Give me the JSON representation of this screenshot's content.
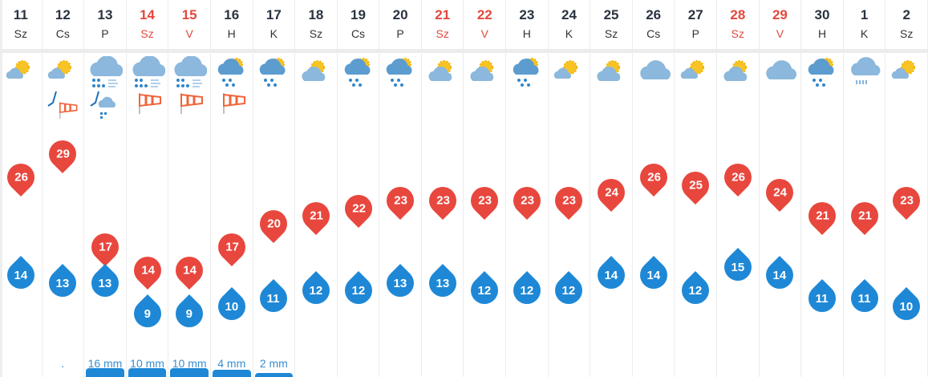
{
  "colors": {
    "max": "#e8473e",
    "min": "#1e88d6",
    "weekend": "#e2483d"
  },
  "days": [
    {
      "day": "11",
      "name": "Sz",
      "weekend": false,
      "icon": "sun-small-cloud",
      "max": 26,
      "min": 14,
      "precip": ""
    },
    {
      "day": "12",
      "name": "Cs",
      "weekend": false,
      "icon": "sun-small-cloud",
      "extra": "storm-windsock",
      "max": 29,
      "min": 13,
      "precip": "."
    },
    {
      "day": "13",
      "name": "P",
      "weekend": false,
      "icon": "cloud-rain-wind",
      "extra": "lightning-hail",
      "max": 17,
      "min": 13,
      "precip": "16 mm",
      "precip_mm": 16
    },
    {
      "day": "14",
      "name": "Sz",
      "weekend": true,
      "icon": "cloud-rain-wind",
      "extra": "windsock",
      "max": 14,
      "min": 9,
      "precip": "10 mm",
      "precip_mm": 10
    },
    {
      "day": "15",
      "name": "V",
      "weekend": true,
      "icon": "cloud-rain-wind",
      "extra": "windsock",
      "max": 14,
      "min": 9,
      "precip": "10 mm",
      "precip_mm": 10
    },
    {
      "day": "16",
      "name": "H",
      "weekend": false,
      "icon": "sun-cloud-rain",
      "extra": "windsock",
      "max": 17,
      "min": 10,
      "precip": "4 mm",
      "precip_mm": 4
    },
    {
      "day": "17",
      "name": "K",
      "weekend": false,
      "icon": "sun-cloud-rain",
      "max": 20,
      "min": 11,
      "precip": "2 mm",
      "precip_mm": 2
    },
    {
      "day": "18",
      "name": "Sz",
      "weekend": false,
      "icon": "partly-cloudy",
      "max": 21,
      "min": 12,
      "precip": ""
    },
    {
      "day": "19",
      "name": "Cs",
      "weekend": false,
      "icon": "sun-cloud-rain",
      "max": 22,
      "min": 12,
      "precip": ""
    },
    {
      "day": "20",
      "name": "P",
      "weekend": false,
      "icon": "sun-cloud-rain",
      "max": 23,
      "min": 13,
      "precip": ""
    },
    {
      "day": "21",
      "name": "Sz",
      "weekend": true,
      "icon": "partly-cloudy",
      "max": 23,
      "min": 13,
      "precip": ""
    },
    {
      "day": "22",
      "name": "V",
      "weekend": true,
      "icon": "partly-cloudy",
      "max": 23,
      "min": 12,
      "precip": ""
    },
    {
      "day": "23",
      "name": "H",
      "weekend": false,
      "icon": "sun-cloud-rain",
      "max": 23,
      "min": 12,
      "precip": ""
    },
    {
      "day": "24",
      "name": "K",
      "weekend": false,
      "icon": "sun-small-cloud",
      "max": 23,
      "min": 12,
      "precip": ""
    },
    {
      "day": "25",
      "name": "Sz",
      "weekend": false,
      "icon": "partly-cloudy",
      "max": 24,
      "min": 14,
      "precip": ""
    },
    {
      "day": "26",
      "name": "Cs",
      "weekend": false,
      "icon": "cloud",
      "max": 26,
      "min": 14,
      "precip": ""
    },
    {
      "day": "27",
      "name": "P",
      "weekend": false,
      "icon": "sun-small-cloud",
      "max": 25,
      "min": 12,
      "precip": ""
    },
    {
      "day": "28",
      "name": "Sz",
      "weekend": true,
      "icon": "partly-cloudy",
      "max": 26,
      "min": 15,
      "precip": ""
    },
    {
      "day": "29",
      "name": "V",
      "weekend": true,
      "icon": "cloud",
      "max": 24,
      "min": 14,
      "precip": ""
    },
    {
      "day": "30",
      "name": "H",
      "weekend": false,
      "icon": "sun-cloud-rain",
      "max": 21,
      "min": 11,
      "precip": ""
    },
    {
      "day": "1",
      "name": "K",
      "weekend": false,
      "icon": "cloud-light-rain",
      "max": 21,
      "min": 11,
      "precip": ""
    },
    {
      "day": "2",
      "name": "Sz",
      "weekend": false,
      "icon": "sun-small-cloud",
      "max": 23,
      "min": 10,
      "precip": ""
    }
  ]
}
